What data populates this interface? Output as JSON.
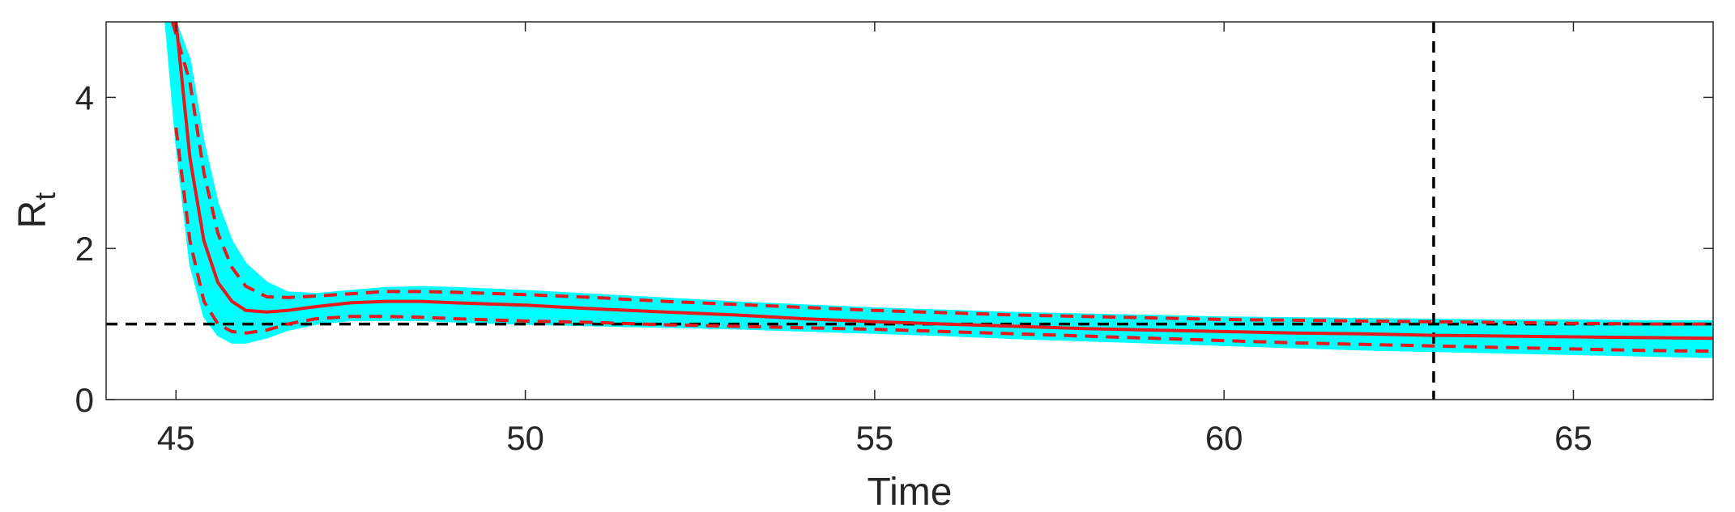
{
  "chart_data": {
    "type": "line",
    "xlabel": "Time",
    "ylabel": {
      "main": "R",
      "subscript": "t"
    },
    "xlim": [
      44,
      67
    ],
    "ylim": [
      0,
      5
    ],
    "xticks": [
      45,
      50,
      55,
      60,
      65
    ],
    "yticks": [
      0,
      2,
      4
    ],
    "grid": false,
    "legend": "none",
    "reference_lines": [
      {
        "orientation": "horizontal",
        "value": 1,
        "style": "dashed",
        "color": "#000000"
      },
      {
        "orientation": "vertical",
        "value": 63,
        "style": "dashed",
        "color": "#000000"
      }
    ],
    "band": {
      "color": "#00ffff",
      "x": [
        44.85,
        45.0,
        45.2,
        45.4,
        45.6,
        45.8,
        46.0,
        46.3,
        46.6,
        47.0,
        47.5,
        48.0,
        48.5,
        49.0,
        50.0,
        51.0,
        52.0,
        53.0,
        54.0,
        55.0,
        56.0,
        57.0,
        58.0,
        59.0,
        60.0,
        61.0,
        62.0,
        63.0,
        64.0,
        65.0,
        66.0,
        67.0
      ],
      "lower": [
        5.0,
        3.4,
        1.8,
        1.1,
        0.85,
        0.75,
        0.75,
        0.82,
        0.92,
        1.0,
        1.05,
        1.05,
        1.05,
        1.03,
        1.0,
        0.98,
        0.96,
        0.94,
        0.91,
        0.88,
        0.85,
        0.81,
        0.78,
        0.75,
        0.72,
        0.69,
        0.66,
        0.64,
        0.62,
        0.6,
        0.58,
        0.56
      ],
      "upper": [
        5.0,
        5.0,
        4.5,
        3.4,
        2.6,
        2.1,
        1.8,
        1.55,
        1.42,
        1.4,
        1.44,
        1.48,
        1.49,
        1.48,
        1.44,
        1.39,
        1.34,
        1.29,
        1.25,
        1.21,
        1.18,
        1.15,
        1.13,
        1.11,
        1.09,
        1.08,
        1.07,
        1.06,
        1.05,
        1.05,
        1.04,
        1.04
      ]
    },
    "series": [
      {
        "color": "#e41a1c",
        "style": "solid",
        "x": [
          45.0,
          45.2,
          45.4,
          45.6,
          45.8,
          46.0,
          46.3,
          46.6,
          47.0,
          47.5,
          48.0,
          48.5,
          49.0,
          50.0,
          51.0,
          52.0,
          53.0,
          54.0,
          55.0,
          56.0,
          57.0,
          58.0,
          59.0,
          60.0,
          61.0,
          62.0,
          63.0,
          64.0,
          65.0,
          66.0,
          67.0
        ],
        "y": [
          5.0,
          3.2,
          2.1,
          1.55,
          1.3,
          1.18,
          1.16,
          1.18,
          1.23,
          1.28,
          1.3,
          1.3,
          1.28,
          1.25,
          1.2,
          1.16,
          1.12,
          1.07,
          1.03,
          1.0,
          0.97,
          0.94,
          0.92,
          0.9,
          0.88,
          0.87,
          0.85,
          0.84,
          0.83,
          0.82,
          0.81
        ]
      },
      {
        "color": "#e41a1c",
        "style": "dashed",
        "x": [
          44.95,
          45.2,
          45.4,
          45.6,
          45.8,
          46.0,
          46.3,
          46.6,
          47.0,
          47.5,
          48.0,
          48.5,
          49.0,
          50.0,
          51.0,
          52.0,
          53.0,
          54.0,
          55.0,
          56.0,
          57.0,
          58.0,
          59.0,
          60.0,
          61.0,
          62.0,
          63.0,
          64.0,
          65.0,
          66.0,
          67.0
        ],
        "y": [
          5.0,
          4.2,
          3.0,
          2.2,
          1.75,
          1.5,
          1.36,
          1.35,
          1.37,
          1.4,
          1.43,
          1.43,
          1.42,
          1.39,
          1.35,
          1.3,
          1.26,
          1.22,
          1.18,
          1.15,
          1.12,
          1.1,
          1.08,
          1.06,
          1.05,
          1.04,
          1.03,
          1.02,
          1.01,
          1.0,
          1.0
        ]
      },
      {
        "color": "#e41a1c",
        "style": "dashed",
        "x": [
          45.0,
          45.2,
          45.4,
          45.6,
          45.8,
          46.0,
          46.3,
          46.6,
          47.0,
          47.5,
          48.0,
          48.5,
          49.0,
          50.0,
          51.0,
          52.0,
          53.0,
          54.0,
          55.0,
          56.0,
          57.0,
          58.0,
          59.0,
          60.0,
          61.0,
          62.0,
          63.0,
          64.0,
          65.0,
          66.0,
          67.0
        ],
        "y": [
          3.6,
          2.1,
          1.3,
          1.0,
          0.9,
          0.88,
          0.92,
          1.0,
          1.07,
          1.1,
          1.1,
          1.09,
          1.07,
          1.04,
          1.02,
          0.99,
          0.97,
          0.95,
          0.93,
          0.9,
          0.87,
          0.84,
          0.81,
          0.78,
          0.75,
          0.73,
          0.71,
          0.69,
          0.67,
          0.65,
          0.64
        ]
      }
    ]
  }
}
